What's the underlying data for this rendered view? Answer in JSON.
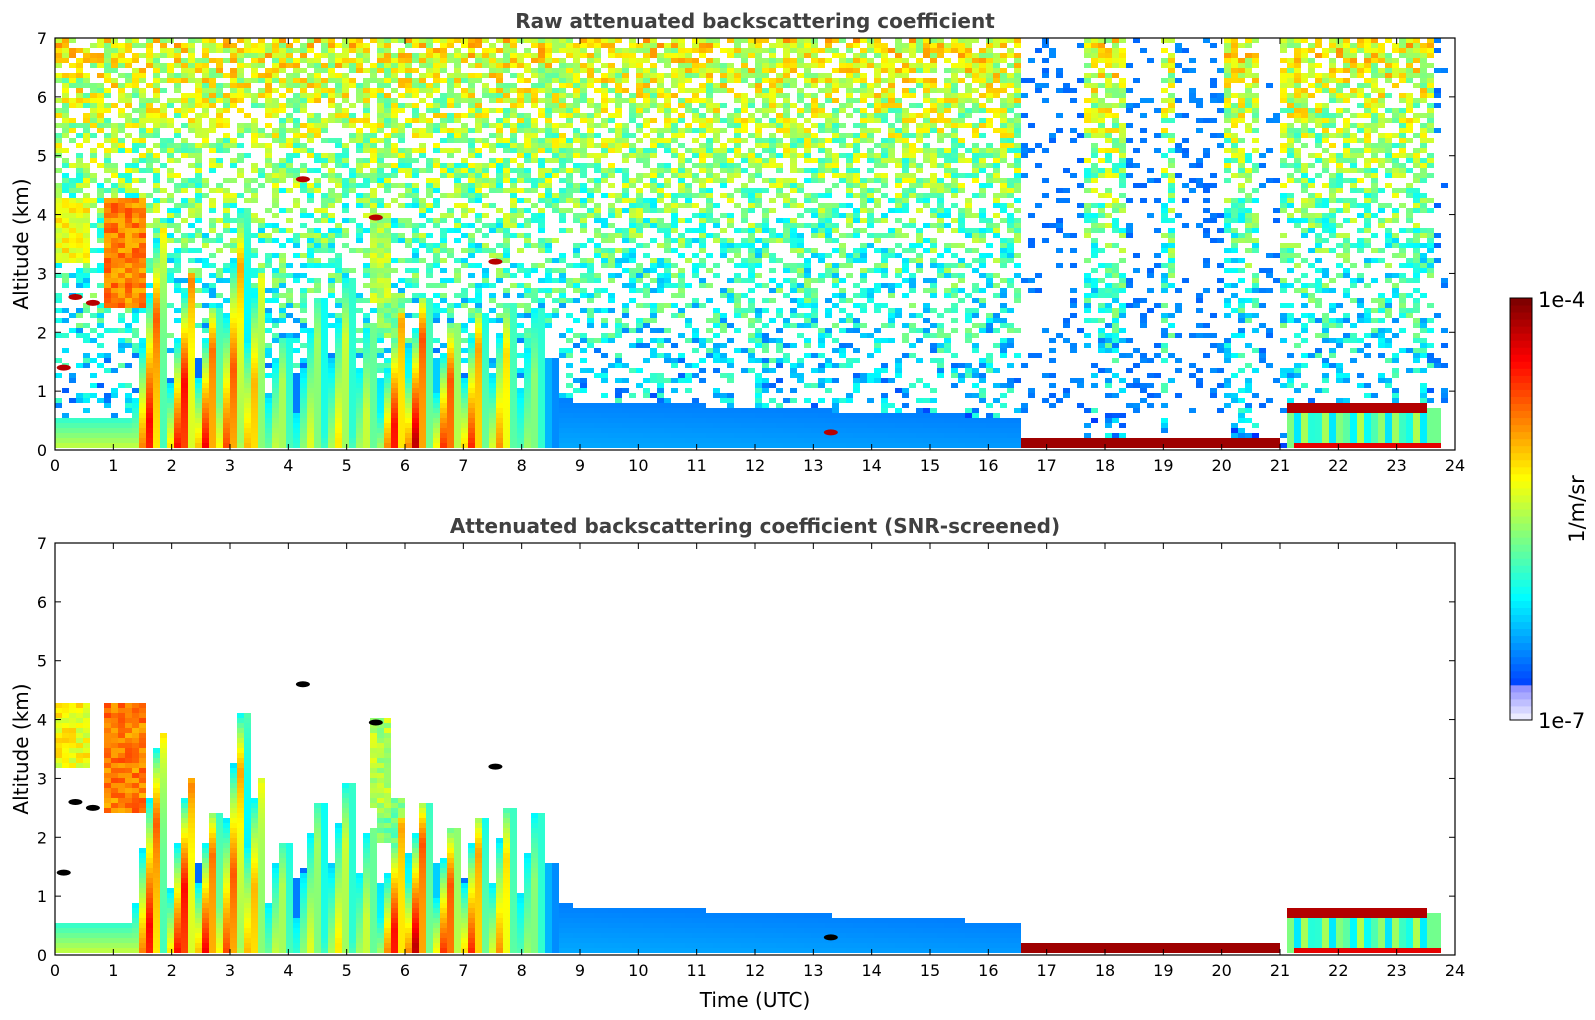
{
  "chart_data": [
    {
      "type": "heatmap",
      "title": "Raw attenuated backscattering coefficient",
      "xlabel": "",
      "ylabel": "Altitude (km)",
      "xlim": [
        0,
        24
      ],
      "ylim": [
        0,
        7
      ],
      "xticks": [
        "0",
        "1",
        "2",
        "3",
        "4",
        "5",
        "6",
        "7",
        "8",
        "9",
        "10",
        "11",
        "12",
        "13",
        "14",
        "15",
        "16",
        "17",
        "18",
        "19",
        "20",
        "21",
        "22",
        "23",
        "24"
      ],
      "yticks": [
        "0",
        "1",
        "2",
        "3",
        "4",
        "5",
        "6",
        "7"
      ],
      "screened": false,
      "features": {
        "plumes": [
          {
            "t": 1.85,
            "top": 3.8,
            "peak": 0.9
          },
          {
            "t": 2.35,
            "top": 3.0,
            "peak": 0.95
          },
          {
            "t": 2.75,
            "top": 2.4,
            "peak": 0.9
          },
          {
            "t": 3.25,
            "top": 4.1,
            "peak": 0.85
          },
          {
            "t": 3.55,
            "top": 3.0,
            "peak": 0.75
          },
          {
            "t": 3.95,
            "top": 1.9,
            "peak": 0.6
          },
          {
            "t": 4.55,
            "top": 2.6,
            "peak": 0.6
          },
          {
            "t": 5.05,
            "top": 2.9,
            "peak": 0.65
          },
          {
            "t": 5.45,
            "top": 2.2,
            "peak": 0.6
          },
          {
            "t": 5.95,
            "top": 2.3,
            "peak": 0.9
          },
          {
            "t": 6.35,
            "top": 2.6,
            "peak": 0.95
          },
          {
            "t": 6.85,
            "top": 2.2,
            "peak": 0.9
          },
          {
            "t": 7.3,
            "top": 2.3,
            "peak": 0.85
          },
          {
            "t": 7.8,
            "top": 2.5,
            "peak": 0.75
          },
          {
            "t": 8.3,
            "top": 2.4,
            "peak": 0.55
          }
        ],
        "aerosol_patches": [
          {
            "t0": 0.0,
            "t1": 0.6,
            "z0": 3.2,
            "z1": 4.3,
            "level": 0.62
          },
          {
            "t0": 0.85,
            "t1": 1.6,
            "z0": 2.4,
            "z1": 4.3,
            "level": 0.75
          },
          {
            "t0": 5.4,
            "t1": 5.8,
            "z0": 2.5,
            "z1": 4.0,
            "level": 0.55
          },
          {
            "t0": 5.5,
            "t1": 6.0,
            "z0": 1.9,
            "z1": 2.7,
            "level": 0.5
          }
        ],
        "dark_spots": [
          {
            "t": 0.35,
            "z": 2.6
          },
          {
            "t": 0.65,
            "z": 2.5
          },
          {
            "t": 0.15,
            "z": 1.4
          },
          {
            "t": 4.25,
            "z": 4.6
          },
          {
            "t": 5.5,
            "z": 3.95
          },
          {
            "t": 7.55,
            "z": 3.2
          },
          {
            "t": 13.3,
            "z": 0.3
          }
        ],
        "boundary_layer": {
          "t0": 0.0,
          "t1": 1.8,
          "top": 0.55,
          "level": 0.58
        },
        "night_blue_layer": {
          "t0": 8.6,
          "t1": 16.6,
          "top_start": 0.85,
          "top_end": 0.55,
          "level": 0.25
        },
        "low_cloud": {
          "t0": 16.6,
          "t1": 21.0,
          "z": 0.12,
          "level": 0.97
        },
        "late_cloud": {
          "t0": 21.1,
          "t1": 23.8,
          "z": 0.7,
          "level": 0.95
        },
        "late_aerosol": {
          "t0": 21.1,
          "t1": 23.8,
          "top": 0.7,
          "level": 0.45
        },
        "clear_columns": [
          [
            16.6,
            17.6
          ],
          [
            18.3,
            18.9
          ],
          [
            19.2,
            20.0
          ],
          [
            20.6,
            21.0
          ],
          [
            23.6,
            23.9
          ]
        ],
        "raw_noise": {
          "level_low": 0.28,
          "level_high": 0.62
        }
      }
    },
    {
      "type": "heatmap",
      "title": "Attenuated backscattering coefficient (SNR-screened)",
      "xlabel": "Time (UTC)",
      "ylabel": "Altitude (km)",
      "xlim": [
        0,
        24
      ],
      "ylim": [
        0,
        7
      ],
      "xticks": [
        "0",
        "1",
        "2",
        "3",
        "4",
        "5",
        "6",
        "7",
        "8",
        "9",
        "10",
        "11",
        "12",
        "13",
        "14",
        "15",
        "16",
        "17",
        "18",
        "19",
        "20",
        "21",
        "22",
        "23",
        "24"
      ],
      "yticks": [
        "0",
        "1",
        "2",
        "3",
        "4",
        "5",
        "6",
        "7"
      ],
      "screened": true
    }
  ],
  "colorbar": {
    "label": "1/m/sr",
    "max_label": "1e-4",
    "min_label": "1e-7",
    "colormap": "jet",
    "scale": "log"
  }
}
